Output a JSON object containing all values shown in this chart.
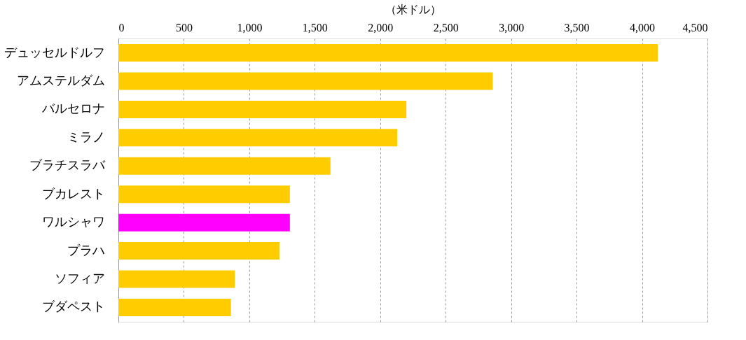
{
  "chart_data": {
    "type": "bar",
    "orientation": "horizontal",
    "xlabel": "（米ドル）",
    "categories": [
      "デュッセルドルフ",
      "アムステルダム",
      "バルセロナ",
      "ミラノ",
      "ブラチスラバ",
      "ブカレスト",
      "ワルシャワ",
      "プラハ",
      "ソフィア",
      "ブダペスト"
    ],
    "values": [
      4120,
      2860,
      2200,
      2130,
      1620,
      1310,
      1310,
      1230,
      890,
      860
    ],
    "colors": [
      "#ffcc00",
      "#ffcc00",
      "#ffcc00",
      "#ffcc00",
      "#ffcc00",
      "#ffcc00",
      "#ff00ff",
      "#ffcc00",
      "#ffcc00",
      "#ffcc00"
    ],
    "xlim": [
      0,
      4500
    ],
    "xticks": [
      {
        "value": 0,
        "label": "0"
      },
      {
        "value": 500,
        "label": "500"
      },
      {
        "value": 1000,
        "label": "1,000"
      },
      {
        "value": 1500,
        "label": "1,500"
      },
      {
        "value": 2000,
        "label": "2,000"
      },
      {
        "value": 2500,
        "label": "2,500"
      },
      {
        "value": 3000,
        "label": "3,000"
      },
      {
        "value": 3500,
        "label": "3,500"
      },
      {
        "value": 4000,
        "label": "4,000"
      },
      {
        "value": 4500,
        "label": "4,500"
      }
    ],
    "grid": "x",
    "legend": false
  }
}
